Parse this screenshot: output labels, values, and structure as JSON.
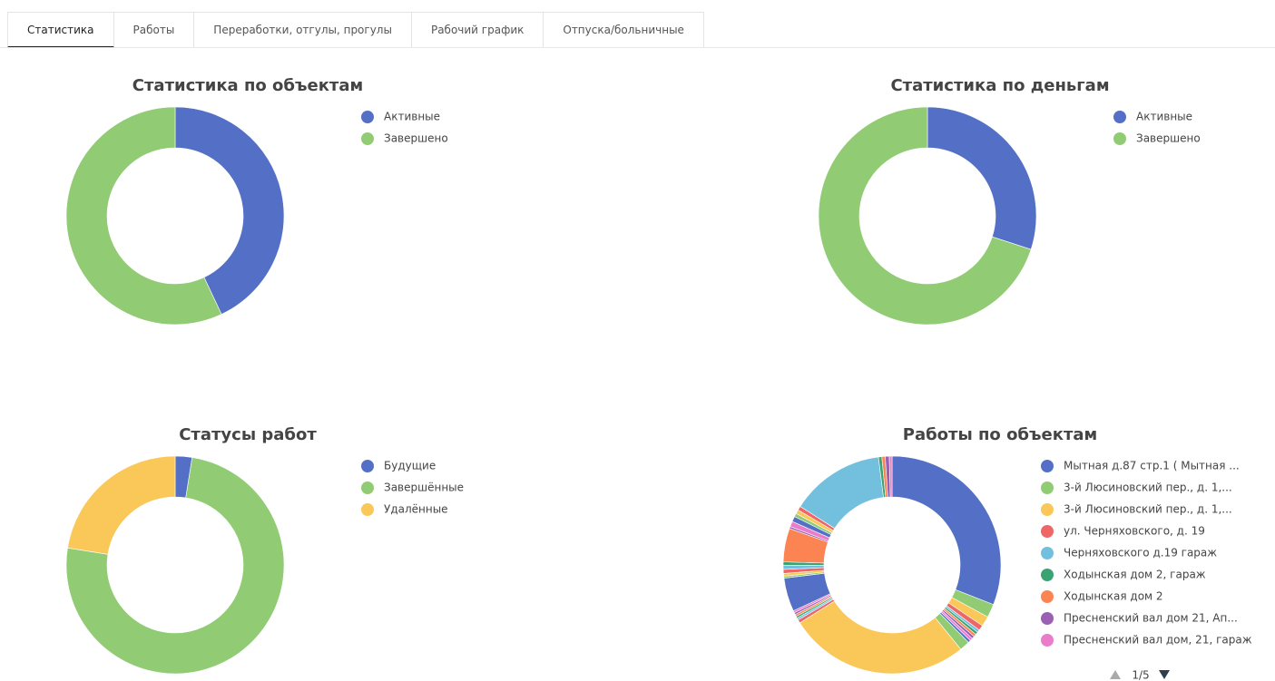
{
  "tabs": [
    "Статистика",
    "Работы",
    "Переработки, отгулы, прогулы",
    "Рабочий график",
    "Отпуска/больничные"
  ],
  "active_tab": 0,
  "chart_data": [
    {
      "type": "pie",
      "title": "Статистика по объектам",
      "categories": [
        "Активные",
        "Завершено"
      ],
      "values": [
        43,
        57
      ],
      "colors": [
        "#5470c6",
        "#91cc75"
      ]
    },
    {
      "type": "pie",
      "title": "Статистика по деньгам",
      "categories": [
        "Активные",
        "Завершено"
      ],
      "values": [
        30,
        70
      ],
      "colors": [
        "#5470c6",
        "#91cc75"
      ]
    },
    {
      "type": "pie",
      "title": "Статусы работ",
      "categories": [
        "Будущие",
        "Завершённые",
        "Удалённые"
      ],
      "values": [
        2.5,
        75,
        22.5
      ],
      "colors": [
        "#5470c6",
        "#91cc75",
        "#fac858"
      ]
    },
    {
      "type": "pie",
      "title": "Работы по объектам",
      "categories": [
        "Мытная д.87 стр.1 ( Мытная ...",
        "3-й Люсиновский пер., д. 1,...",
        "3-й Люсиновский пер., д. 1,...",
        "ул. Черняховского, д. 19",
        "Черняховского д.19 гараж",
        "Ходынская дом 2, гараж",
        "Ходынская дом 2",
        "Пресненский вал дом  21, Ап...",
        "Пресненский вал дом, 21, гараж",
        null,
        null,
        null,
        null,
        null,
        null,
        null,
        null,
        null,
        null,
        null,
        null,
        null,
        null,
        null,
        null,
        null,
        null,
        null,
        null,
        null,
        null,
        null,
        null,
        null,
        null,
        null
      ],
      "values": [
        31,
        2,
        1.5,
        0.8,
        0.4,
        0.4,
        0.4,
        0.4,
        0.4,
        0.4,
        1.5,
        27,
        0.5,
        0.3,
        0.3,
        0.3,
        0.3,
        0.3,
        5,
        0.3,
        0.4,
        0.6,
        0.6,
        0.5,
        5,
        0.3,
        0.8,
        0.8,
        0.5,
        0.6,
        0.6,
        14,
        0.5,
        0.5,
        0.6,
        0.4
      ],
      "colors": [
        "#5470c6",
        "#91cc75",
        "#fac858",
        "#ee6666",
        "#73c0de",
        "#3ba272",
        "#fc8452",
        "#9a60b4",
        "#ea7ccc"
      ],
      "legend_page": "1/5"
    }
  ]
}
